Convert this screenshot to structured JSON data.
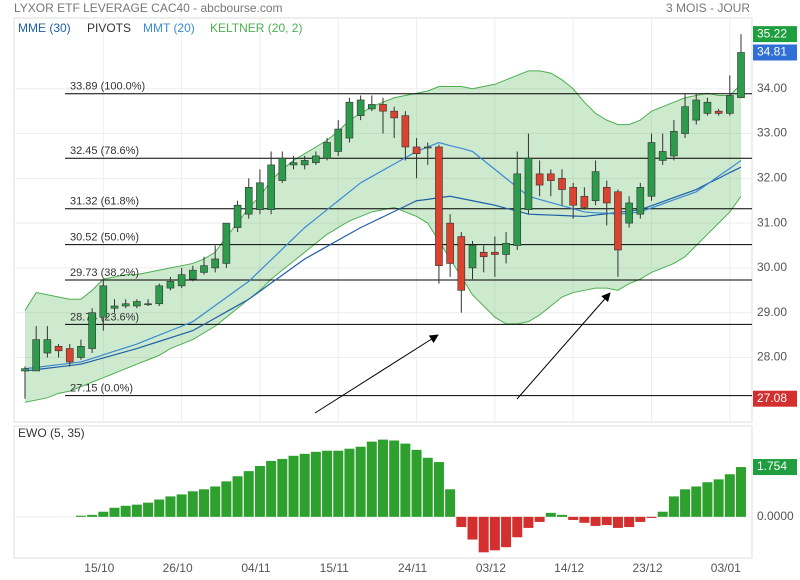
{
  "chart_data": [
    {
      "type": "candlestick",
      "title": "LYXOR ETF LEVERAGE CAC40 - abcbourse.com",
      "subtitle": "3 MOIS - JOUR",
      "categories": [
        null,
        null,
        null,
        null,
        null,
        null,
        null,
        "15/10",
        null,
        null,
        null,
        null,
        null,
        null,
        "26/10",
        null,
        null,
        null,
        null,
        null,
        null,
        "04/11",
        null,
        null,
        null,
        null,
        null,
        null,
        "15/11",
        null,
        null,
        null,
        null,
        null,
        null,
        "24/11",
        null,
        null,
        null,
        null,
        null,
        null,
        "03/12",
        null,
        null,
        null,
        null,
        null,
        null,
        "14/12",
        null,
        null,
        null,
        null,
        null,
        null,
        "23/12",
        null,
        null,
        null,
        null,
        null,
        null,
        "03/01",
        null
      ],
      "open": [
        27.7,
        27.7,
        28.1,
        28.25,
        28.2,
        28.0,
        28.2,
        28.9,
        29.1,
        29.15,
        29.15,
        29.2,
        29.2,
        29.55,
        29.6,
        29.75,
        29.9,
        30.0,
        30.1,
        30.9,
        31.2,
        31.3,
        31.3,
        31.95,
        32.3,
        32.3,
        32.35,
        32.45,
        32.6,
        32.9,
        33.4,
        33.55,
        33.65,
        33.5,
        33.4,
        32.7,
        32.7,
        32.7,
        31.0,
        30.7,
        30.0,
        30.35,
        30.35,
        30.3,
        30.5,
        31.3,
        32.1,
        32.1,
        32.0,
        31.8,
        31.6,
        31.5,
        31.8,
        31.7,
        31.0,
        31.2,
        31.6,
        32.4,
        32.5,
        33.0,
        33.3,
        33.45,
        33.5,
        33.45,
        33.8
      ],
      "high": [
        27.8,
        28.7,
        28.7,
        28.3,
        28.3,
        28.4,
        29.1,
        29.75,
        29.3,
        29.3,
        29.3,
        29.3,
        29.65,
        29.8,
        30.0,
        30.05,
        30.25,
        30.5,
        31.0,
        31.5,
        32.0,
        32.2,
        32.6,
        32.6,
        32.5,
        32.5,
        32.6,
        32.9,
        33.3,
        33.8,
        33.85,
        33.85,
        33.8,
        33.6,
        33.5,
        32.9,
        32.8,
        32.75,
        31.2,
        30.8,
        30.6,
        30.5,
        30.7,
        30.8,
        32.6,
        33.0,
        32.4,
        32.2,
        32.2,
        31.9,
        31.8,
        32.4,
        31.95,
        31.75,
        31.6,
        31.9,
        33.0,
        33.0,
        33.3,
        33.9,
        33.9,
        33.8,
        33.55,
        34.3,
        35.22
      ],
      "low": [
        27.08,
        27.7,
        28.0,
        28.0,
        27.8,
        27.95,
        28.1,
        28.6,
        29.0,
        29.1,
        29.1,
        29.15,
        29.15,
        29.5,
        29.55,
        29.7,
        29.85,
        29.9,
        30.0,
        30.8,
        31.1,
        31.2,
        31.2,
        31.9,
        32.2,
        32.2,
        32.3,
        32.4,
        32.5,
        32.8,
        33.3,
        33.5,
        33.0,
        32.9,
        32.4,
        32.0,
        32.3,
        29.65,
        29.8,
        29.0,
        29.75,
        29.9,
        29.8,
        30.1,
        30.4,
        31.2,
        31.6,
        31.6,
        31.4,
        31.1,
        31.3,
        31.4,
        30.95,
        29.8,
        30.9,
        31.1,
        31.5,
        32.3,
        32.4,
        32.9,
        33.2,
        33.4,
        33.4,
        33.4,
        33.8
      ],
      "close": [
        27.75,
        28.4,
        28.4,
        28.15,
        27.9,
        28.25,
        29.0,
        29.6,
        29.15,
        29.2,
        29.25,
        29.2,
        29.6,
        29.7,
        29.85,
        29.95,
        30.05,
        30.2,
        31.0,
        31.4,
        31.8,
        31.9,
        32.3,
        32.45,
        32.35,
        32.4,
        32.5,
        32.8,
        33.1,
        33.7,
        33.75,
        33.65,
        33.5,
        33.35,
        32.7,
        32.55,
        32.7,
        30.05,
        30.1,
        29.5,
        30.5,
        30.25,
        30.3,
        30.55,
        32.1,
        32.45,
        31.85,
        31.95,
        31.75,
        31.4,
        31.35,
        32.15,
        31.45,
        30.4,
        31.45,
        31.8,
        32.8,
        32.6,
        33.05,
        33.6,
        33.75,
        33.7,
        33.45,
        33.85,
        34.81
      ],
      "up_color": "#2e9a4c",
      "down_color": "#d9432f",
      "series": [
        {
          "name": "MME (30)",
          "color": "#1f5fa8",
          "values": [
            27.7,
            27.73,
            27.76,
            27.79,
            27.82,
            27.85,
            27.92,
            27.99,
            28.06,
            28.13,
            28.2,
            28.28,
            28.36,
            28.44,
            28.52,
            28.6,
            28.74,
            28.88,
            29.02,
            29.16,
            29.3,
            29.48,
            29.66,
            29.84,
            30.02,
            30.2,
            30.34,
            30.48,
            30.62,
            30.76,
            30.9,
            31.02,
            31.14,
            31.26,
            31.38,
            31.5,
            31.53,
            31.57,
            31.6,
            31.55,
            31.5,
            31.45,
            31.4,
            31.33,
            31.27,
            31.2,
            31.19,
            31.18,
            31.17,
            31.16,
            31.15,
            31.18,
            31.21,
            31.24,
            31.27,
            31.3,
            31.39,
            31.48,
            31.57,
            31.66,
            31.75,
            31.88,
            32.0,
            32.13,
            32.25
          ]
        },
        {
          "name": "MMT (20)",
          "color": "#3a8ad4",
          "values": [
            27.75,
            27.78,
            27.81,
            27.84,
            27.87,
            27.9,
            27.98,
            28.06,
            28.14,
            28.22,
            28.3,
            28.4,
            28.5,
            28.6,
            28.7,
            28.8,
            28.98,
            29.16,
            29.34,
            29.52,
            29.7,
            29.94,
            30.18,
            30.42,
            30.66,
            30.9,
            31.1,
            31.3,
            31.5,
            31.7,
            31.9,
            32.04,
            32.18,
            32.32,
            32.46,
            32.6,
            32.7,
            32.8,
            32.73,
            32.67,
            32.6,
            32.4,
            32.2,
            32.0,
            31.8,
            31.6,
            31.53,
            31.46,
            31.39,
            31.32,
            31.25,
            31.23,
            31.22,
            31.2,
            31.22,
            31.25,
            31.34,
            31.43,
            31.52,
            31.61,
            31.7,
            31.87,
            32.05,
            32.22,
            32.4
          ]
        }
      ],
      "keltner": {
        "name": "KELTNER (20, 2)",
        "color": "#4caf50",
        "upper": [
          29.05,
          29.45,
          29.4,
          29.35,
          29.3,
          29.3,
          29.5,
          29.75,
          29.8,
          29.85,
          29.85,
          29.9,
          29.95,
          30.0,
          30.05,
          30.1,
          30.2,
          30.35,
          30.7,
          31.0,
          31.35,
          31.6,
          31.95,
          32.2,
          32.4,
          32.55,
          32.7,
          32.85,
          33.05,
          33.3,
          33.45,
          33.6,
          33.7,
          33.8,
          33.85,
          33.9,
          33.95,
          34.05,
          34.05,
          34.05,
          34.0,
          34.05,
          34.1,
          34.2,
          34.3,
          34.4,
          34.4,
          34.35,
          34.2,
          34.0,
          33.7,
          33.45,
          33.3,
          33.2,
          33.2,
          33.3,
          33.5,
          33.6,
          33.7,
          33.8,
          33.85,
          33.9,
          33.85,
          33.85,
          34.1
        ],
        "lower": [
          27.0,
          27.05,
          27.1,
          27.2,
          27.25,
          27.35,
          27.45,
          27.55,
          27.65,
          27.75,
          27.85,
          27.95,
          28.05,
          28.2,
          28.3,
          28.4,
          28.55,
          28.7,
          28.9,
          29.1,
          29.3,
          29.5,
          29.75,
          29.95,
          30.15,
          30.35,
          30.55,
          30.75,
          30.9,
          31.05,
          31.15,
          31.25,
          31.3,
          31.35,
          31.25,
          31.15,
          31.0,
          30.6,
          30.2,
          29.8,
          29.4,
          29.15,
          28.9,
          28.75,
          28.75,
          28.8,
          28.95,
          29.15,
          29.35,
          29.45,
          29.5,
          29.55,
          29.55,
          29.5,
          29.65,
          29.75,
          29.9,
          30.0,
          30.1,
          30.25,
          30.5,
          30.75,
          31.0,
          31.25,
          31.6
        ]
      },
      "pivots": {
        "name": "PIVOTS",
        "color": "#000000",
        "values": [
          33.89,
          32.45,
          31.32,
          30.52,
          29.73,
          28.74,
          27.15
        ],
        "value_labels": [
          "33.89 (100.0%)",
          "32.45 (78.6%)",
          "31.32 (61.8%)",
          "30.52 (50.0%)",
          "29.73 (38.2%)",
          "28.74 (23.6%)",
          "27.15 (0.0%)"
        ]
      },
      "marker_colors": {
        "high": "#1e9e3e",
        "close": "#2f6fd6",
        "low": "#d32f2f"
      },
      "ylim": [
        26.56,
        35.58
      ],
      "yticks": [
        {
          "value": 28,
          "label": "28.00"
        },
        {
          "value": 29,
          "label": "29.00"
        },
        {
          "value": 30,
          "label": "30.00"
        },
        {
          "value": 31,
          "label": "31.00"
        },
        {
          "value": 32,
          "label": "32.00"
        },
        {
          "value": 33,
          "label": "33.00"
        },
        {
          "value": 34,
          "label": "34.00"
        }
      ],
      "grid": true
    },
    {
      "type": "bar",
      "title": "EWO (5, 35)",
      "values": [
        null,
        null,
        null,
        null,
        null,
        0.04,
        0.07,
        0.18,
        0.32,
        0.39,
        0.43,
        0.5,
        0.61,
        0.72,
        0.79,
        0.9,
        0.97,
        1.07,
        1.25,
        1.43,
        1.61,
        1.79,
        1.97,
        2.04,
        2.15,
        2.22,
        2.29,
        2.33,
        2.33,
        2.4,
        2.47,
        2.65,
        2.72,
        2.69,
        2.58,
        2.36,
        2.08,
        1.93,
        0.97,
        -0.36,
        -0.8,
        -1.25,
        -1.18,
        -1.07,
        -0.72,
        -0.39,
        -0.18,
        0.14,
        0.07,
        -0.11,
        -0.21,
        -0.32,
        -0.29,
        -0.39,
        -0.36,
        -0.18,
        -0.04,
        0.18,
        0.72,
        0.97,
        1.07,
        1.22,
        1.32,
        1.5,
        1.754
      ],
      "up_color": "#2ea02e",
      "down_color": "#d32f2f",
      "marker_color": "#1e9e3e",
      "ylim": [
        -1.45,
        3.2
      ],
      "yticks": [
        {
          "value": 0,
          "label": "0.0000"
        }
      ],
      "grid": true
    }
  ]
}
